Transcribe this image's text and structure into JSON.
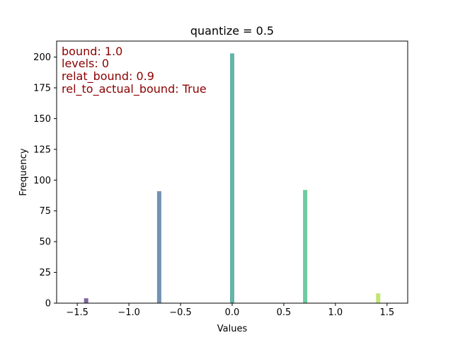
{
  "chart_data": {
    "type": "bar",
    "title": "quantize = 0.5",
    "xlabel": "Values",
    "ylabel": "Frequency",
    "xlim": [
      -1.7,
      1.7
    ],
    "ylim": [
      0,
      213
    ],
    "xticks": [
      -1.5,
      -1.0,
      -0.5,
      0.0,
      0.5,
      1.0,
      1.5
    ],
    "xtick_labels": [
      "−1.5",
      "−1.0",
      "−0.5",
      "0.0",
      "0.5",
      "1.0",
      "1.5"
    ],
    "yticks": [
      0,
      25,
      50,
      75,
      100,
      125,
      150,
      175,
      200
    ],
    "ytick_labels": [
      "0",
      "25",
      "50",
      "75",
      "100",
      "125",
      "150",
      "175",
      "200"
    ],
    "grid": false,
    "legend": "none",
    "bars": [
      {
        "x": -1.414,
        "value": 4,
        "color": "#6a4c8c"
      },
      {
        "x": -0.707,
        "value": 91,
        "color": "#5a7fa6"
      },
      {
        "x": 0.0,
        "value": 203,
        "color": "#4aa79a"
      },
      {
        "x": 0.707,
        "value": 92,
        "color": "#55c28f"
      },
      {
        "x": 1.414,
        "value": 8,
        "color": "#b7e05a"
      }
    ],
    "annotations": [
      "bound: 1.0",
      "levels: 0",
      "relat_bound: 0.9",
      "rel_to_actual_bound: True"
    ]
  }
}
